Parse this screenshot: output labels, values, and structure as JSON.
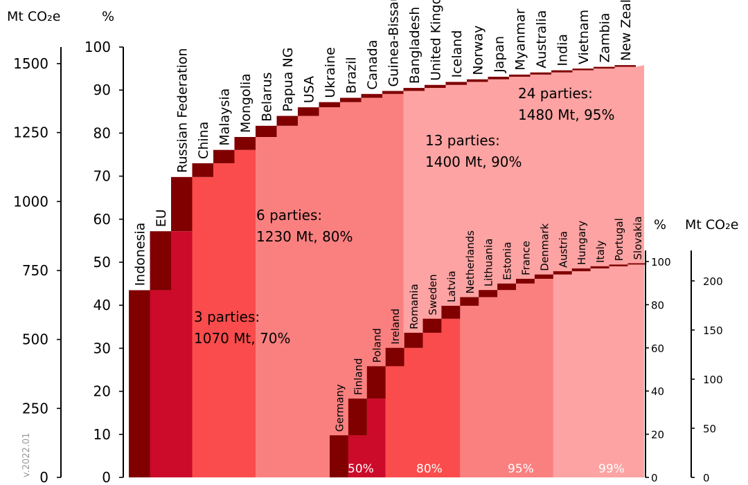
{
  "chart_data": [
    {
      "type": "bar",
      "left_axis_title": "Mt CO₂e",
      "right_axis_title": "%",
      "mt_ticks": [
        "0",
        "250",
        "500",
        "750",
        "1000",
        "1250",
        "1500"
      ],
      "pct_ticks": [
        "0",
        "10",
        "20",
        "30",
        "40",
        "50",
        "60",
        "70",
        "80",
        "90",
        "100"
      ],
      "ylim_mt": [
        0,
        1560
      ],
      "ylim_pct": [
        0,
        100
      ],
      "categories": [
        "Indonesia",
        "EU",
        "Russian Federation",
        "China",
        "Malaysia",
        "Mongolia",
        "Belarus",
        "Papua NG",
        "USA",
        "Ukraine",
        "Brazil",
        "Canada",
        "Guinea-Bissau",
        "Bangladesh",
        "United Kingdom",
        "Iceland",
        "Norway",
        "Japan",
        "Myanmar",
        "Australia",
        "India",
        "Vietnam",
        "Zambia",
        "New Zealand"
      ],
      "cumulative_pct": [
        43.5,
        57.2,
        69.8,
        73.0,
        76.1,
        79.1,
        81.7,
        84.0,
        86.0,
        87.2,
        88.2,
        89.1,
        89.8,
        90.5,
        91.2,
        91.9,
        92.5,
        93.1,
        93.6,
        94.1,
        94.6,
        95.0,
        95.4,
        95.8
      ],
      "bands": [
        {
          "label": "3 parties:",
          "value": "1070 Mt, 70%",
          "color": "#cc0a2a"
        },
        {
          "label": "6 parties:",
          "value": "1230 Mt, 80%",
          "color": "#fa4c4c"
        },
        {
          "label": "13 parties:",
          "value": "1400 Mt, 90%",
          "color": "#fa8080"
        },
        {
          "label": "24 parties:",
          "value": "1480 Mt, 95%",
          "color": "#fda3a3"
        }
      ]
    },
    {
      "type": "bar",
      "left_axis_title": "%",
      "right_axis_title": "Mt CO₂e",
      "pct_ticks": [
        "0",
        "20",
        "40",
        "60",
        "80",
        "100"
      ],
      "mt_ticks": [
        "0",
        "50",
        "100",
        "150",
        "200"
      ],
      "ylim_pct": [
        0,
        100
      ],
      "categories": [
        "Germany",
        "Finland",
        "Poland",
        "Ireland",
        "Romania",
        "Sweden",
        "Latvia",
        "Netherlands",
        "Lithuania",
        "Estonia",
        "France",
        "Denmark",
        "Austria",
        "Hungary",
        "Italy",
        "Portugal",
        "Slovakia"
      ],
      "cumulative_pct": [
        19.5,
        36.5,
        51.5,
        60.0,
        67.0,
        73.5,
        79.5,
        83.5,
        86.8,
        89.8,
        92.0,
        94.0,
        95.5,
        96.8,
        97.8,
        98.6,
        99.2
      ],
      "bands": [
        {
          "label": "50%",
          "color": "#cc0a2a"
        },
        {
          "label": "80%",
          "color": "#fa4c4c"
        },
        {
          "label": "95%",
          "color": "#fa8080"
        },
        {
          "label": "99%",
          "color": "#fda3a3"
        }
      ]
    }
  ],
  "version_label": "v.2022.01",
  "colors": {
    "dark_step": "#800000",
    "band_1": "#cc0a2a",
    "band_2": "#fa4c4c",
    "band_3": "#fa8080",
    "band_4": "#fda3a3"
  }
}
